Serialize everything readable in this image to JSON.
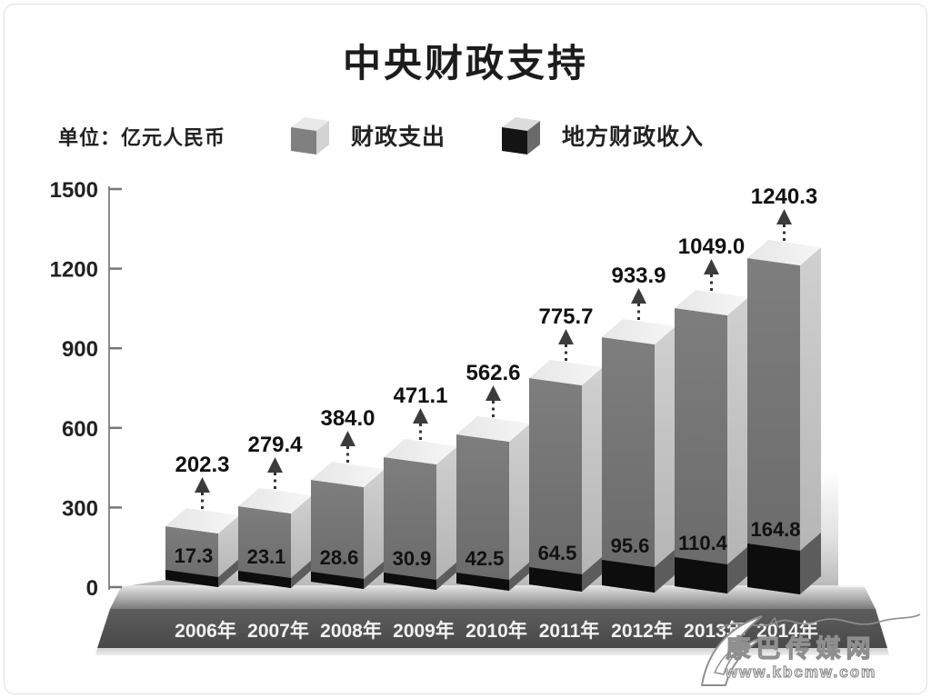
{
  "title": "中央财政支持",
  "unit_label": "单位：亿元人民币",
  "watermark": {
    "site_name": "康巴传媒网",
    "url": "www.kbcmw.com"
  },
  "colors": {
    "bar_front": "#727272",
    "bar_side": "#c4c4c4",
    "bar_top": "#ececec",
    "black_front": "#0d0d0d",
    "black_side": "#5c5c5c",
    "platform_front": "#515151",
    "axis": "#8a8a8a",
    "label_text": "#111111",
    "year_text": "#f2f2f2"
  },
  "chart_data": {
    "type": "bar",
    "projection": "3d-oblique",
    "title": "中央财政支持",
    "unit": "亿元人民币",
    "categories": [
      "2006年",
      "2007年",
      "2008年",
      "2009年",
      "2010年",
      "2011年",
      "2012年",
      "2013年",
      "2014年"
    ],
    "series": [
      {
        "name": "财政支出",
        "color": "#727272",
        "values": [
          202.3,
          279.4,
          384.0,
          471.1,
          562.6,
          775.7,
          933.9,
          1049.0,
          1240.3
        ],
        "labels": [
          "202.3",
          "279.4",
          "384.0",
          "471.1",
          "562.6",
          "775.7",
          "933.9",
          "1049.0",
          "1240.3"
        ]
      },
      {
        "name": "地方财政收入",
        "color": "#0d0d0d",
        "values": [
          17.3,
          23.1,
          28.6,
          30.9,
          42.5,
          64.5,
          95.6,
          110.4,
          164.8
        ],
        "labels": [
          "17.3",
          "23.1",
          "28.6",
          "30.9",
          "42.5",
          "64.5",
          "95.6",
          "110.4",
          "164.8"
        ]
      }
    ],
    "xlabel": "",
    "ylabel": "",
    "ylim": [
      0,
      1500
    ],
    "yticks": [
      0,
      300,
      600,
      900,
      1200,
      1500
    ],
    "grid": false,
    "legend_position": "top"
  }
}
